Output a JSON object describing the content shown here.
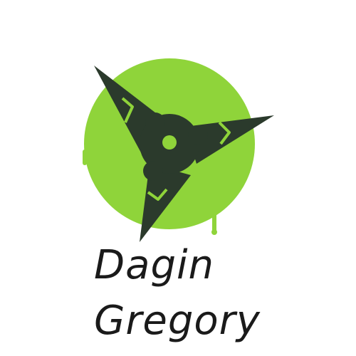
{
  "logo": {
    "icon": "shuriken-icon",
    "colors": {
      "circle": "#8fd43a",
      "star": "#2b3a2c",
      "accent": "#8fd43a"
    }
  },
  "name": {
    "line1": "Dagin",
    "line2": "Gregory"
  }
}
